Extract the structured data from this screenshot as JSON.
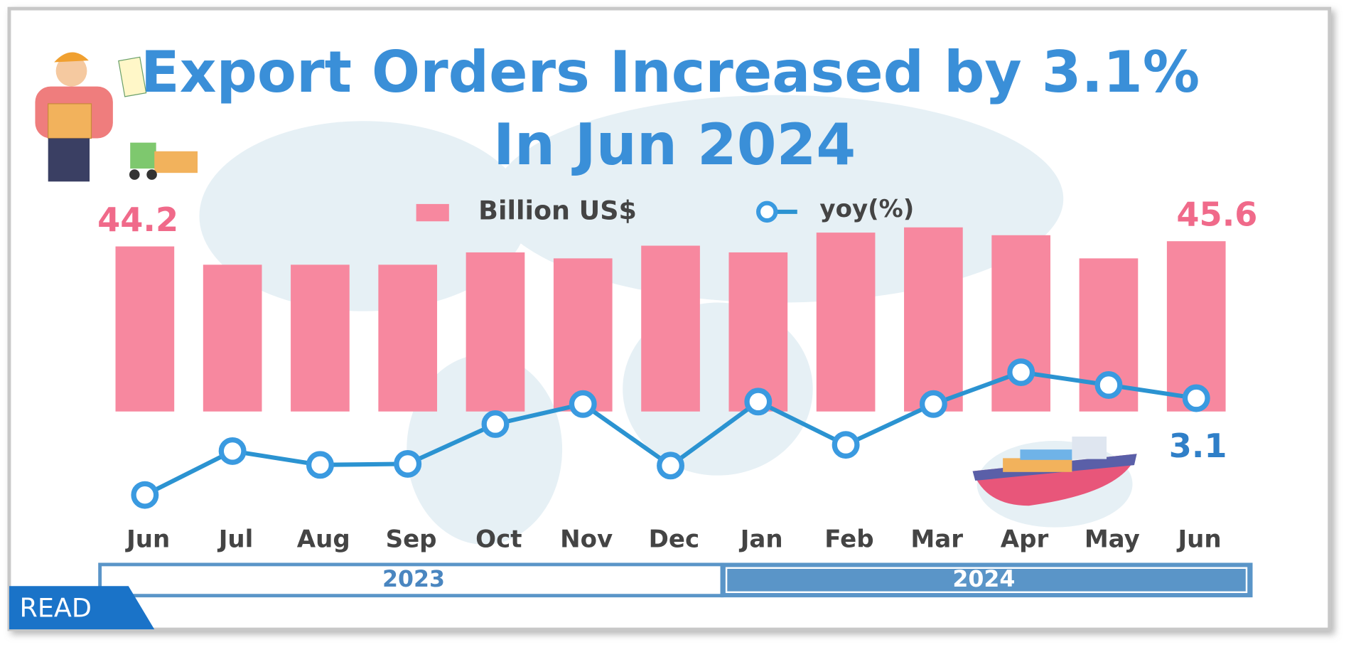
{
  "chart_data": {
    "type": "bar_line",
    "title": [
      "Export Orders Increased by 3.1%",
      "In  Jun 2024"
    ],
    "categories": [
      "Jun",
      "Jul",
      "Aug",
      "Sep",
      "Oct",
      "Nov",
      "Dec",
      "Jan",
      "Feb",
      "Mar",
      "Apr",
      "May",
      "Jun"
    ],
    "year_groups": [
      "2023",
      "2024"
    ],
    "series": [
      {
        "name": "Billion US$",
        "type": "bar",
        "color": "#f7889f",
        "values": [
          44.2,
          39.3,
          39.3,
          39.3,
          42.6,
          41.0,
          44.4,
          42.6,
          47.9,
          49.3,
          47.2,
          41.0,
          45.6
        ],
        "value_labels": [
          "44.2",
          null,
          null,
          null,
          null,
          null,
          null,
          null,
          null,
          null,
          null,
          null,
          "45.6"
        ]
      },
      {
        "name": "yoy(%)",
        "type": "line",
        "axis": "y2",
        "color": "#2b93d1",
        "values": [
          -24.9,
          -12.2,
          -16.2,
          -15.9,
          -4.4,
          1.4,
          -16.4,
          2.1,
          -10.4,
          1.4,
          10.6,
          6.9,
          3.1
        ],
        "value_labels": [
          null,
          null,
          null,
          null,
          null,
          null,
          null,
          null,
          null,
          null,
          null,
          null,
          "3.1"
        ]
      }
    ],
    "ylim": [
      0,
      52
    ],
    "y2lim": [
      -35,
      15
    ],
    "badge": "READ"
  }
}
